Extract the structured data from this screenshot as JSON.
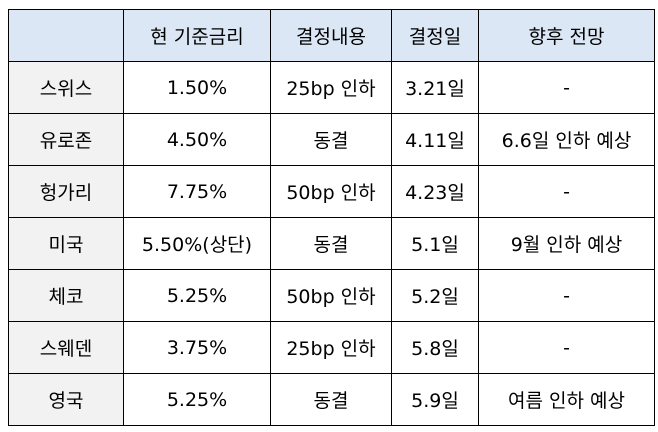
{
  "table": {
    "headers": [
      "",
      "현 기준금리",
      "결정내용",
      "결정일",
      "향후 전망"
    ],
    "rows": [
      {
        "country": "스위스",
        "rate": "1.50%",
        "decision": "25bp 인하",
        "date": "3.21일",
        "outlook": "-"
      },
      {
        "country": "유로존",
        "rate": "4.50%",
        "decision": "동결",
        "date": "4.11일",
        "outlook": "6.6일 인하 예상"
      },
      {
        "country": "헝가리",
        "rate": "7.75%",
        "decision": "50bp 인하",
        "date": "4.23일",
        "outlook": "-"
      },
      {
        "country": "미국",
        "rate": "5.50%(상단)",
        "decision": "동결",
        "date": "5.1일",
        "outlook": "9월 인하 예상"
      },
      {
        "country": "체코",
        "rate": "5.25%",
        "decision": "50bp 인하",
        "date": "5.2일",
        "outlook": "-"
      },
      {
        "country": "스웨덴",
        "rate": "3.75%",
        "decision": "25bp 인하",
        "date": "5.8일",
        "outlook": "-"
      },
      {
        "country": "영국",
        "rate": "5.25%",
        "decision": "동결",
        "date": "5.9일",
        "outlook": "여름 인하 예상"
      }
    ]
  },
  "colors": {
    "header_bg": "#dbe7f5",
    "country_col_bg": "#f2f2f2",
    "border": "#000000"
  }
}
